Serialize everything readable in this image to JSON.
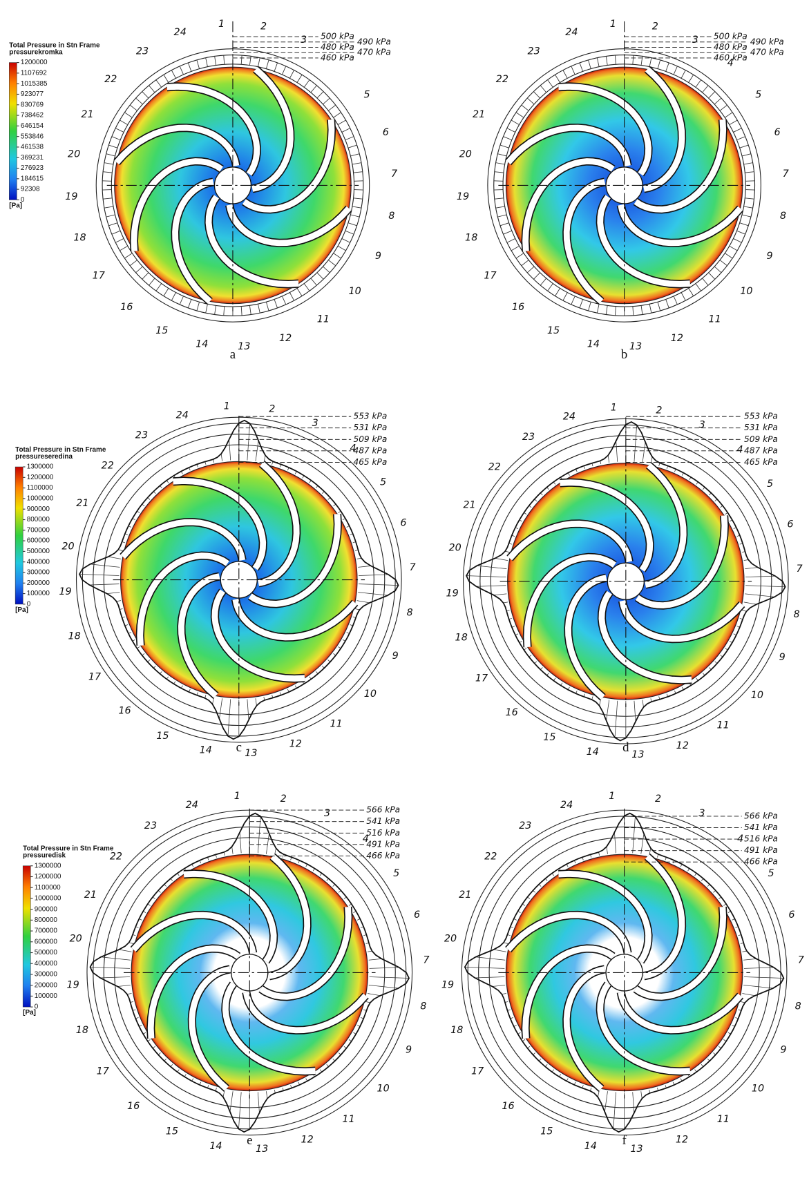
{
  "panels": [
    {
      "label": "a",
      "legend": {
        "title": "Total Pressure in Stn Frame",
        "subtitle": "pressurekromka",
        "ticks": [
          1200000,
          1107692,
          1015385,
          923077,
          830769,
          738462,
          646154,
          553846,
          461538,
          369231,
          276923,
          184615,
          92308,
          0
        ],
        "unit": "[Pa]"
      },
      "pressures": [
        "500 kPa",
        "490 kPa",
        "480 kPa",
        "470 kPa",
        "460 kPa"
      ],
      "stations": [
        "1",
        "2",
        "3",
        "5",
        "6",
        "7",
        "8",
        "9",
        "10",
        "11",
        "12",
        "13",
        "14",
        "15",
        "16",
        "17",
        "18",
        "19",
        "20",
        "21",
        "22",
        "23",
        "24"
      ]
    },
    {
      "label": "b",
      "pressures": [
        "500 kPa",
        "490 kPa",
        "480 kPa",
        "470 kPa",
        "460 kPa"
      ],
      "stations": [
        "1",
        "2",
        "3",
        "4",
        "5",
        "6",
        "7",
        "8",
        "9",
        "10",
        "11",
        "12",
        "13",
        "14",
        "15",
        "16",
        "17",
        "18",
        "19",
        "20",
        "21",
        "22",
        "23",
        "24"
      ]
    },
    {
      "label": "c",
      "legend": {
        "title": "Total Pressure in Stn Frame",
        "subtitle": "pressureseredina",
        "ticks": [
          1300000,
          1200000,
          1100000,
          1000000,
          900000,
          800000,
          700000,
          600000,
          500000,
          400000,
          300000,
          200000,
          100000,
          0
        ],
        "unit": "[Pa]"
      },
      "pressures": [
        "553 kPa",
        "531 kPa",
        "509 kPa",
        "487 kPa",
        "465 kPa"
      ],
      "stations": [
        "1",
        "2",
        "3",
        "4",
        "5",
        "6",
        "7",
        "8",
        "9",
        "10",
        "11",
        "12",
        "13",
        "14",
        "15",
        "16",
        "17",
        "18",
        "19",
        "20",
        "21",
        "22",
        "23",
        "24"
      ]
    },
    {
      "label": "d",
      "pressures": [
        "553 kPa",
        "531 kPa",
        "509 kPa",
        "487 kPa",
        "465 kPa"
      ],
      "stations": [
        "1",
        "2",
        "3",
        "4",
        "5",
        "6",
        "7",
        "8",
        "9",
        "10",
        "11",
        "12",
        "13",
        "14",
        "15",
        "16",
        "17",
        "18",
        "19",
        "20",
        "21",
        "22",
        "23",
        "24"
      ]
    },
    {
      "label": "e",
      "legend": {
        "title": "Total Pressure in Stn Frame",
        "subtitle": "pressuredisk",
        "ticks": [
          1300000,
          1200000,
          1100000,
          1000000,
          900000,
          800000,
          700000,
          600000,
          500000,
          400000,
          300000,
          200000,
          100000,
          0
        ],
        "unit": "[Pa]"
      },
      "pressures": [
        "566 kPa",
        "541 kPa",
        "516 kPa",
        "491 kPa",
        "466 kPa"
      ],
      "stations": [
        "1",
        "2",
        "3",
        "4",
        "5",
        "6",
        "7",
        "8",
        "9",
        "10",
        "11",
        "12",
        "13",
        "14",
        "15",
        "16",
        "17",
        "18",
        "19",
        "20",
        "21",
        "22",
        "23",
        "24"
      ]
    },
    {
      "label": "f",
      "pressures": [
        "566 kPa",
        "541 kPa",
        "516 kPa",
        "491 kPa",
        "466 kPa"
      ],
      "stations": [
        "1",
        "2",
        "3",
        "4",
        "5",
        "6",
        "7",
        "8",
        "9",
        "10",
        "11",
        "12",
        "13",
        "14",
        "15",
        "16",
        "17",
        "18",
        "19",
        "20",
        "21",
        "22",
        "23",
        "24"
      ]
    }
  ]
}
